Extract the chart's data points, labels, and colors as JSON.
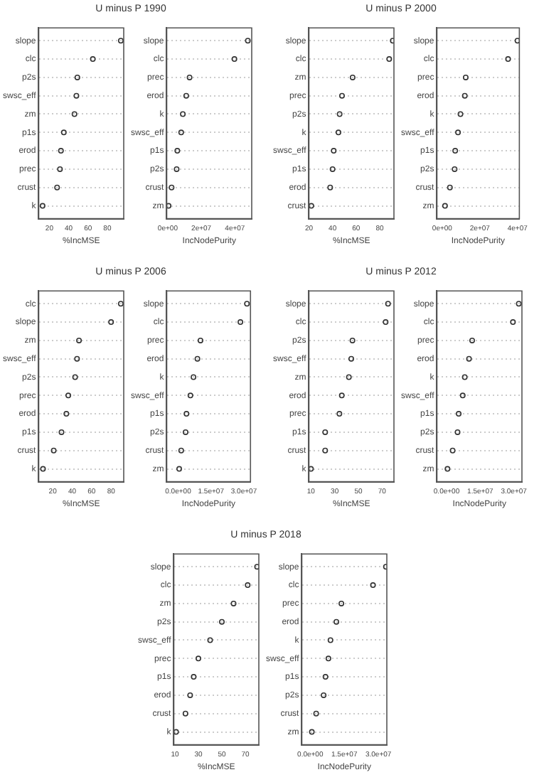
{
  "chart_data": [
    {
      "type": "scatter",
      "orientation": "horizontal",
      "title": "U minus P 1990",
      "xlabel": "%IncMSE",
      "categories": [
        "slope",
        "clc",
        "p2s",
        "swsc_eff",
        "zm",
        "p1s",
        "erod",
        "prec",
        "crust",
        "k"
      ],
      "values": [
        94,
        65,
        49,
        48,
        46,
        35,
        32,
        31,
        28,
        13
      ],
      "color": "#333333",
      "marker": "circle",
      "grid": "y",
      "xlim": [
        9,
        97
      ],
      "xticks": [
        20,
        40,
        60,
        80
      ]
    },
    {
      "type": "scatter",
      "orientation": "horizontal",
      "xlabel": "IncNodePurity",
      "categories": [
        "slope",
        "clc",
        "prec",
        "erod",
        "k",
        "swsc_eff",
        "p1s",
        "p2s",
        "crust",
        "zm"
      ],
      "values": [
        47700000,
        39700000,
        13000000,
        11000000,
        9000000,
        8000000,
        5700000,
        5300000,
        2300000,
        500000
      ],
      "color": "#333333",
      "marker": "circle",
      "grid": "y",
      "xlim": [
        -600000,
        50000000
      ],
      "xticks": [
        {
          "value": 0,
          "label": "0e+00"
        },
        {
          "value": 20000000,
          "label": "2e+07"
        },
        {
          "value": 40000000,
          "label": "4e+07"
        }
      ]
    },
    {
      "type": "scatter",
      "orientation": "horizontal",
      "title": "U minus P 2000",
      "xlabel": "%IncMSE",
      "categories": [
        "slope",
        "clc",
        "zm",
        "prec",
        "p2s",
        "k",
        "swsc_eff",
        "p1s",
        "erod",
        "crust"
      ],
      "values": [
        91,
        88,
        57,
        48,
        46,
        45,
        41,
        40,
        38,
        22
      ],
      "color": "#333333",
      "marker": "circle",
      "grid": "y",
      "xlim": [
        20,
        92
      ],
      "xticks": [
        20,
        40,
        60,
        80
      ]
    },
    {
      "type": "scatter",
      "orientation": "horizontal",
      "xlabel": "IncNodePurity",
      "categories": [
        "slope",
        "clc",
        "prec",
        "erod",
        "k",
        "swsc_eff",
        "p1s",
        "p2s",
        "crust",
        "zm"
      ],
      "values": [
        40000000,
        35000000,
        12500000,
        12000000,
        9700000,
        8400000,
        6900000,
        6600000,
        4100000,
        1500000
      ],
      "color": "#333333",
      "marker": "circle",
      "grid": "y",
      "xlim": [
        -2800000,
        41000000
      ],
      "xticks": [
        {
          "value": 0,
          "label": "0e+00"
        },
        {
          "value": 20000000,
          "label": "2e+07"
        },
        {
          "value": 40000000,
          "label": "4e+07"
        }
      ]
    },
    {
      "type": "scatter",
      "orientation": "horizontal",
      "title": "U minus P 2006",
      "xlabel": "%IncMSE",
      "categories": [
        "clc",
        "slope",
        "zm",
        "swsc_eff",
        "p2s",
        "prec",
        "erod",
        "p1s",
        "crust",
        "k"
      ],
      "values": [
        90,
        80,
        47,
        45,
        43,
        36,
        34,
        29,
        21,
        10
      ],
      "color": "#333333",
      "marker": "circle",
      "grid": "y",
      "xlim": [
        5.6,
        93
      ],
      "xticks": [
        20,
        40,
        60,
        80
      ]
    },
    {
      "type": "scatter",
      "orientation": "horizontal",
      "xlabel": "IncNodePurity",
      "categories": [
        "slope",
        "clc",
        "prec",
        "erod",
        "k",
        "swsc_eff",
        "p1s",
        "p2s",
        "crust",
        "zm"
      ],
      "values": [
        31400000,
        28400000,
        10200000,
        8800000,
        7000000,
        5600000,
        3800000,
        3400000,
        1400000,
        500000
      ],
      "color": "#333333",
      "marker": "circle",
      "grid": "y",
      "xlim": [
        -5200000,
        33000000
      ],
      "xticks": [
        {
          "value": 0,
          "label": "0.0e+00"
        },
        {
          "value": 15000000,
          "label": "1.5e+07"
        },
        {
          "value": 30000000,
          "label": "3.0e+07"
        }
      ]
    },
    {
      "type": "scatter",
      "orientation": "horizontal",
      "title": "U minus P 2012",
      "xlabel": "%IncMSE",
      "categories": [
        "slope",
        "clc",
        "p2s",
        "swsc_eff",
        "zm",
        "erod",
        "prec",
        "p1s",
        "crust",
        "k"
      ],
      "values": [
        75,
        73,
        45,
        44,
        42,
        36,
        34,
        22,
        22,
        10
      ],
      "color": "#333333",
      "marker": "circle",
      "grid": "y",
      "xlim": [
        8.3,
        80
      ],
      "xticks": [
        10,
        30,
        50,
        70
      ]
    },
    {
      "type": "scatter",
      "orientation": "horizontal",
      "xlabel": "IncNodePurity",
      "categories": [
        "slope",
        "clc",
        "prec",
        "erod",
        "k",
        "swsc_eff",
        "p1s",
        "p2s",
        "crust",
        "zm"
      ],
      "values": [
        32200000,
        29600000,
        11400000,
        10000000,
        8100000,
        7200000,
        5400000,
        4900000,
        2700000,
        400000
      ],
      "color": "#333333",
      "marker": "circle",
      "grid": "y",
      "xlim": [
        -4300000,
        33600000
      ],
      "xticks": [
        {
          "value": 0,
          "label": "0.0e+00"
        },
        {
          "value": 15000000,
          "label": "1.5e+07"
        },
        {
          "value": 30000000,
          "label": "3.0e+07"
        }
      ]
    },
    {
      "type": "scatter",
      "orientation": "horizontal",
      "title": "U minus P 2018",
      "xlabel": "%IncMSE",
      "categories": [
        "slope",
        "clc",
        "zm",
        "p2s",
        "swsc_eff",
        "prec",
        "p1s",
        "erod",
        "crust",
        "k"
      ],
      "values": [
        80,
        72,
        60,
        50,
        40,
        30,
        26,
        23,
        19,
        11
      ],
      "color": "#333333",
      "marker": "circle",
      "grid": "y",
      "xlim": [
        9.1,
        81.5
      ],
      "xticks": [
        10,
        30,
        50,
        70
      ]
    },
    {
      "type": "scatter",
      "orientation": "horizontal",
      "xlabel": "IncNodePurity",
      "categories": [
        "slope",
        "clc",
        "prec",
        "erod",
        "k",
        "swsc_eff",
        "p1s",
        "p2s",
        "crust",
        "zm"
      ],
      "values": [
        33300000,
        27600000,
        13700000,
        11500000,
        8900000,
        8000000,
        6700000,
        5900000,
        2600000,
        700000
      ],
      "color": "#333333",
      "marker": "circle",
      "grid": "y",
      "xlim": [
        -3700000,
        33700000
      ],
      "xticks": [
        {
          "value": 0,
          "label": "0.0e+00"
        },
        {
          "value": 15000000,
          "label": "1.5e+07"
        },
        {
          "value": 30000000,
          "label": "3.0e+07"
        }
      ]
    }
  ]
}
